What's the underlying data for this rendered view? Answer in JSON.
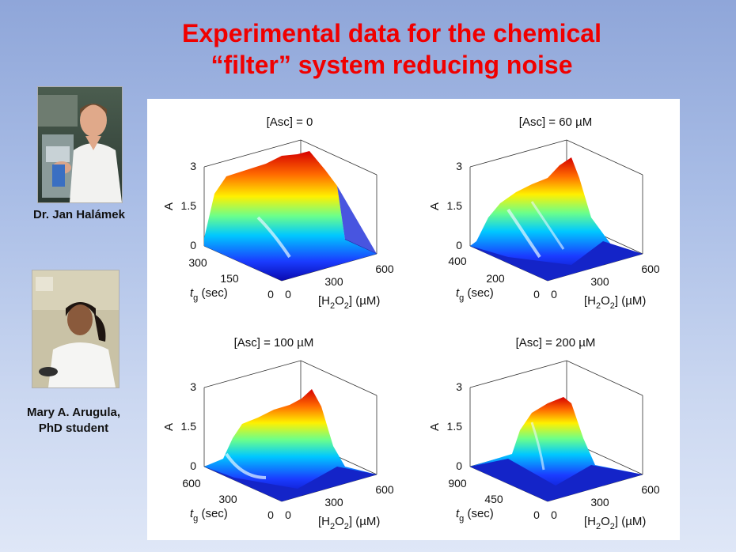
{
  "slide": {
    "title_line1": "Experimental data for the chemical",
    "title_line2": "“filter” system reducing noise"
  },
  "people": [
    {
      "caption": "Dr. Jan Halámek"
    },
    {
      "caption_line1": "Mary A. Arugula,",
      "caption_line2": "PhD student"
    }
  ],
  "colors": {
    "title": "#f00000",
    "surface_low": "#1a1acc",
    "surface_high": "#d60000"
  },
  "panels": [
    {
      "title": "[Asc] = 0",
      "z_label": "A",
      "z_ticks": [
        "0",
        "1.5",
        "3"
      ],
      "tg_ticks": [
        "0",
        "150",
        "300"
      ],
      "h2o2_ticks": [
        "0",
        "300",
        "600"
      ],
      "tg_label": "t",
      "tg_sub": "g",
      "tg_unit": " (sec)",
      "x_label_pre": "[H",
      "x_sub1": "2",
      "x_label_mid": "O",
      "x_sub2": "2",
      "x_label_post": "] (µM)",
      "peak_level": 0.95
    },
    {
      "title": "[Asc] = 60 µM",
      "z_label": "A",
      "z_ticks": [
        "0",
        "1.5",
        "3"
      ],
      "tg_ticks": [
        "0",
        "200",
        "400"
      ],
      "h2o2_ticks": [
        "0",
        "300",
        "600"
      ],
      "tg_label": "t",
      "tg_sub": "g",
      "tg_unit": " (sec)",
      "x_label_pre": "[H",
      "x_sub1": "2",
      "x_label_mid": "O",
      "x_sub2": "2",
      "x_label_post": "] (µM)",
      "peak_level": 0.95
    },
    {
      "title": "[Asc] = 100 µM",
      "z_label": "A",
      "z_ticks": [
        "0",
        "1.5",
        "3"
      ],
      "tg_ticks": [
        "0",
        "300",
        "600"
      ],
      "h2o2_ticks": [
        "0",
        "300",
        "600"
      ],
      "tg_label": "t",
      "tg_sub": "g",
      "tg_unit": " (sec)",
      "x_label_pre": "[H",
      "x_sub1": "2",
      "x_label_mid": "O",
      "x_sub2": "2",
      "x_label_post": "] (µM)",
      "peak_level": 0.9
    },
    {
      "title": "[Asc] = 200 µM",
      "z_label": "A",
      "z_ticks": [
        "0",
        "1.5",
        "3"
      ],
      "tg_ticks": [
        "0",
        "450",
        "900"
      ],
      "h2o2_ticks": [
        "0",
        "300",
        "600"
      ],
      "tg_label": "t",
      "tg_sub": "g",
      "tg_unit": " (sec)",
      "x_label_pre": "[H",
      "x_sub1": "2",
      "x_label_mid": "O",
      "x_sub2": "2",
      "x_label_post": "] (µM)",
      "peak_level": 0.8
    }
  ]
}
